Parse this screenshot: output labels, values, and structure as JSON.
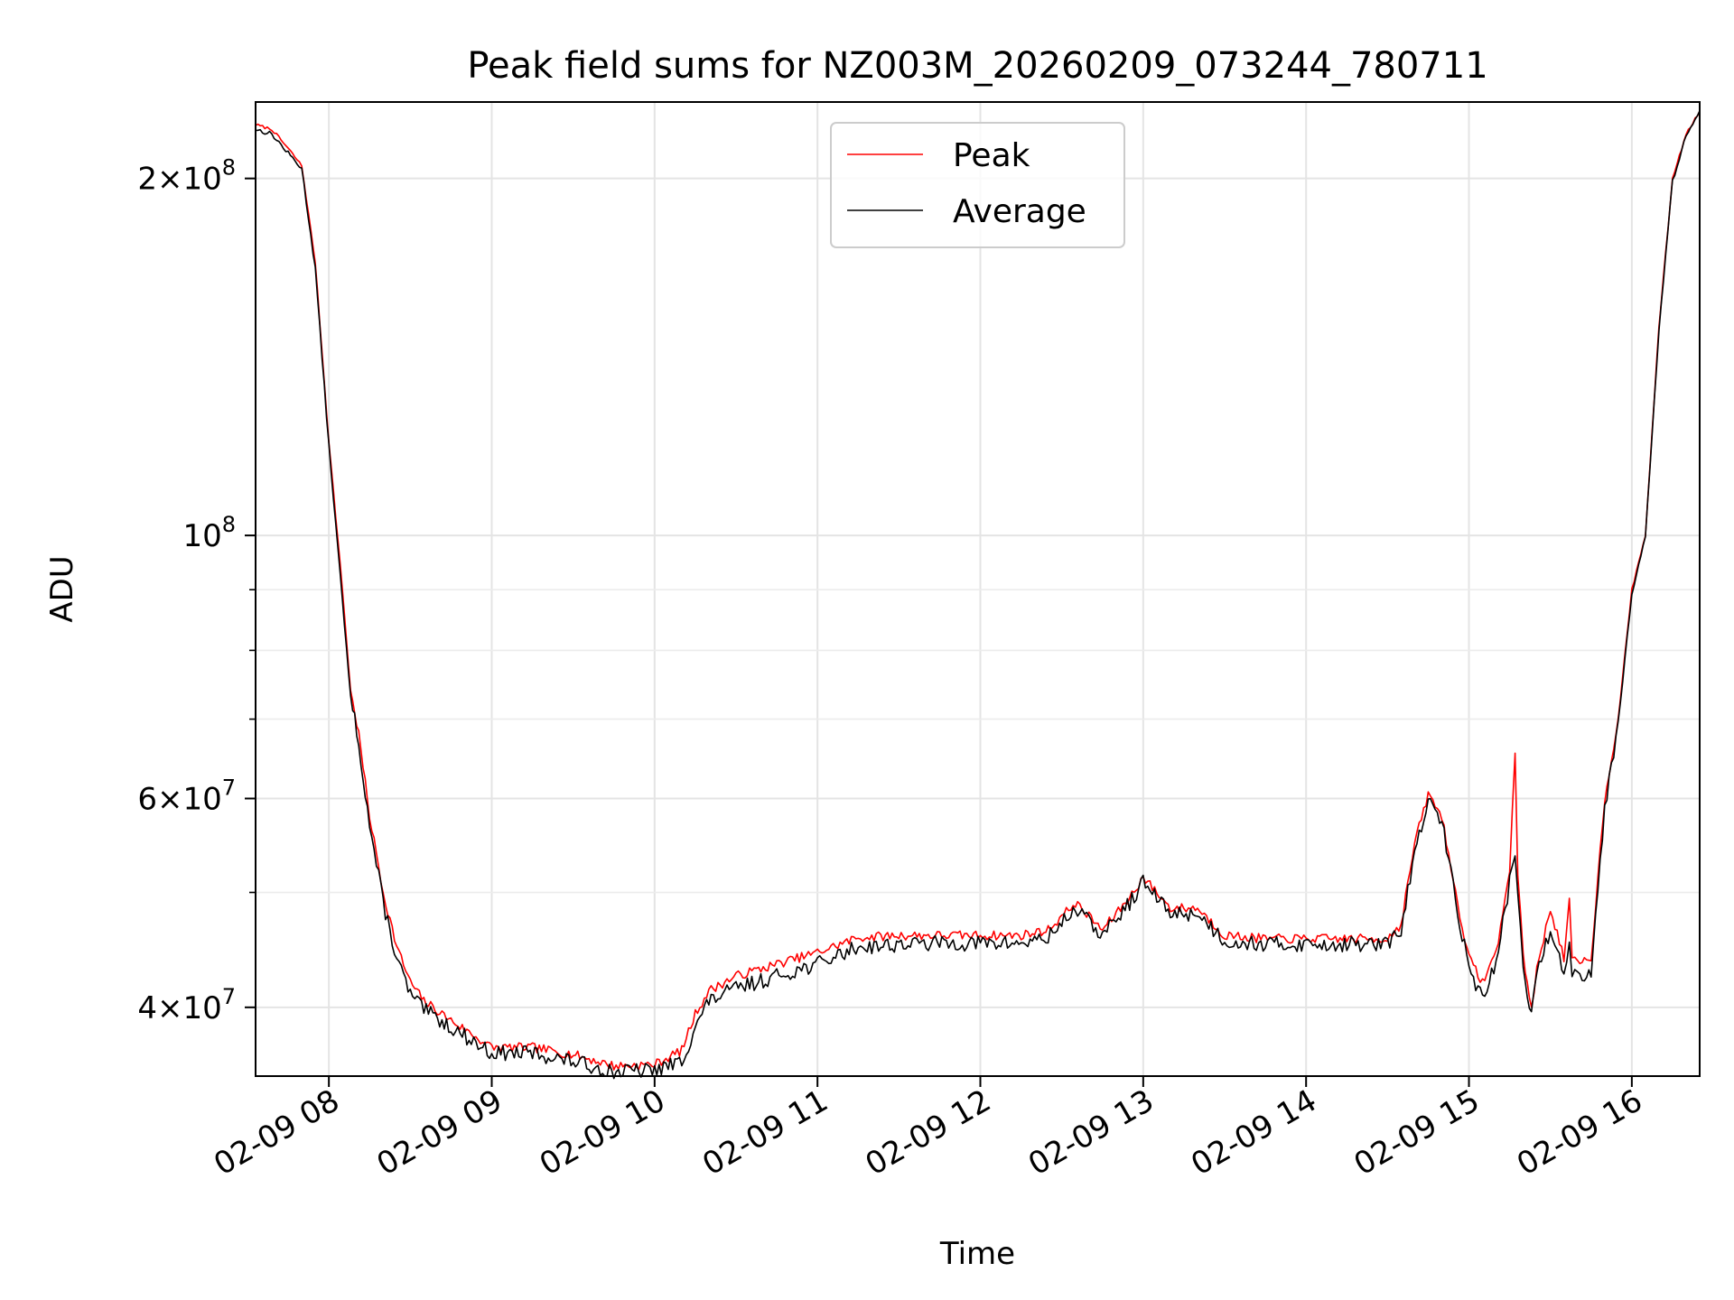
{
  "chart_data": {
    "type": "line",
    "title": "Peak field sums for NZ003M_20260209_073244_780711",
    "xlabel": "Time",
    "ylabel": "ADU",
    "y_scale": "log",
    "ylim": [
      35000000,
      232000000
    ],
    "xlim": [
      "02-09 07:33",
      "02-09 16:25"
    ],
    "grid": true,
    "legend_position": "upper-center",
    "x_tick_labels": [
      "02-09 08",
      "02-09 09",
      "02-09 10",
      "02-09 11",
      "02-09 12",
      "02-09 13",
      "02-09 14",
      "02-09 15",
      "02-09 16"
    ],
    "x_tick_values": [
      "02-09 08:00",
      "02-09 09:00",
      "02-09 10:00",
      "02-09 11:00",
      "02-09 12:00",
      "02-09 13:00",
      "02-09 14:00",
      "02-09 15:00",
      "02-09 16:00"
    ],
    "y_major_ticks": [
      {
        "value": 40000000,
        "mantissa": "4",
        "exponent": "7"
      },
      {
        "value": 60000000,
        "mantissa": "6",
        "exponent": "7"
      },
      {
        "value": 100000000,
        "mantissa": "",
        "exponent": "8"
      },
      {
        "value": 200000000,
        "mantissa": "2",
        "exponent": "8"
      }
    ],
    "y_minor_ticks": [
      50000000,
      70000000,
      80000000,
      90000000
    ],
    "series": [
      {
        "name": "Peak",
        "color": "#ff0000",
        "x": [
          "02-09 07:33",
          "02-09 07:39",
          "02-09 07:45",
          "02-09 07:50",
          "02-09 07:55",
          "02-09 08:00",
          "02-09 08:05",
          "02-09 08:08",
          "02-09 08:11",
          "02-09 08:15",
          "02-09 08:20",
          "02-09 08:25",
          "02-09 08:30",
          "02-09 08:35",
          "02-09 08:45",
          "02-09 09:00",
          "02-09 09:15",
          "02-09 09:30",
          "02-09 09:45",
          "02-09 10:00",
          "02-09 10:10",
          "02-09 10:15",
          "02-09 10:20",
          "02-09 10:30",
          "02-09 10:45",
          "02-09 11:00",
          "02-09 11:15",
          "02-09 11:30",
          "02-09 11:45",
          "02-09 12:00",
          "02-09 12:15",
          "02-09 12:25",
          "02-09 12:35",
          "02-09 12:45",
          "02-09 12:55",
          "02-09 13:00",
          "02-09 13:10",
          "02-09 13:20",
          "02-09 13:30",
          "02-09 13:45",
          "02-09 14:00",
          "02-09 14:15",
          "02-09 14:30",
          "02-09 14:35",
          "02-09 14:40",
          "02-09 14:45",
          "02-09 14:50",
          "02-09 14:55",
          "02-09 15:00",
          "02-09 15:05",
          "02-09 15:10",
          "02-09 15:15",
          "02-09 15:17",
          "02-09 15:18",
          "02-09 15:20",
          "02-09 15:23",
          "02-09 15:25",
          "02-09 15:30",
          "02-09 15:35",
          "02-09 15:37",
          "02-09 15:38",
          "02-09 15:40",
          "02-09 15:45",
          "02-09 15:50",
          "02-09 15:55",
          "02-09 16:00",
          "02-09 16:05",
          "02-09 16:10",
          "02-09 16:15",
          "02-09 16:20",
          "02-09 16:25"
        ],
        "y": [
          222000000,
          220000000,
          212000000,
          205000000,
          170000000,
          120000000,
          90000000,
          74000000,
          68000000,
          58000000,
          50000000,
          45000000,
          42000000,
          40500000,
          39000000,
          37000000,
          37000000,
          36500000,
          35700000,
          35800000,
          36800000,
          39500000,
          41300000,
          42500000,
          43500000,
          44500000,
          45800000,
          46000000,
          46000000,
          46000000,
          46000000,
          46500000,
          49000000,
          46500000,
          49500000,
          51500000,
          48500000,
          48500000,
          46000000,
          45700000,
          45700000,
          45700000,
          45700000,
          47000000,
          55000000,
          60500000,
          58000000,
          50000000,
          44000000,
          42000000,
          44500000,
          52000000,
          66000000,
          52000000,
          44000000,
          40000000,
          43000000,
          48500000,
          44000000,
          49000000,
          44000000,
          43500000,
          44000000,
          60000000,
          70000000,
          90000000,
          100000000,
          150000000,
          200000000,
          218000000,
          228000000
        ]
      },
      {
        "name": "Average",
        "color": "#000000",
        "x": [
          "02-09 07:33",
          "02-09 07:39",
          "02-09 07:45",
          "02-09 07:50",
          "02-09 07:55",
          "02-09 08:00",
          "02-09 08:05",
          "02-09 08:08",
          "02-09 08:11",
          "02-09 08:15",
          "02-09 08:20",
          "02-09 08:25",
          "02-09 08:30",
          "02-09 08:35",
          "02-09 08:45",
          "02-09 09:00",
          "02-09 09:15",
          "02-09 09:30",
          "02-09 09:45",
          "02-09 10:00",
          "02-09 10:10",
          "02-09 10:15",
          "02-09 10:20",
          "02-09 10:30",
          "02-09 10:45",
          "02-09 11:00",
          "02-09 11:15",
          "02-09 11:30",
          "02-09 11:45",
          "02-09 12:00",
          "02-09 12:15",
          "02-09 12:25",
          "02-09 12:35",
          "02-09 12:45",
          "02-09 12:55",
          "02-09 13:00",
          "02-09 13:10",
          "02-09 13:20",
          "02-09 13:30",
          "02-09 13:45",
          "02-09 14:00",
          "02-09 14:15",
          "02-09 14:30",
          "02-09 14:35",
          "02-09 14:40",
          "02-09 14:45",
          "02-09 14:50",
          "02-09 14:55",
          "02-09 15:00",
          "02-09 15:05",
          "02-09 15:10",
          "02-09 15:15",
          "02-09 15:17",
          "02-09 15:18",
          "02-09 15:20",
          "02-09 15:23",
          "02-09 15:25",
          "02-09 15:30",
          "02-09 15:35",
          "02-09 15:37",
          "02-09 15:38",
          "02-09 15:40",
          "02-09 15:45",
          "02-09 15:50",
          "02-09 15:55",
          "02-09 16:00",
          "02-09 16:05",
          "02-09 16:10",
          "02-09 16:15",
          "02-09 16:20",
          "02-09 16:25"
        ],
        "y": [
          220000000,
          218000000,
          210000000,
          204000000,
          168000000,
          119000000,
          88000000,
          73000000,
          67000000,
          57000000,
          49000000,
          44000000,
          41000000,
          39800000,
          38500000,
          36600000,
          36600000,
          36000000,
          35300000,
          35400000,
          36000000,
          38500000,
          40500000,
          41500000,
          42500000,
          43500000,
          45000000,
          45200000,
          45300000,
          45300000,
          45300000,
          45800000,
          48500000,
          46000000,
          49000000,
          51000000,
          48000000,
          48000000,
          45500000,
          45200000,
          45200000,
          45200000,
          45200000,
          46500000,
          54000000,
          59500000,
          57500000,
          49500000,
          43000000,
          40800000,
          43500000,
          51000000,
          54000000,
          50000000,
          43000000,
          39500000,
          42500000,
          46500000,
          43000000,
          45000000,
          43000000,
          42500000,
          43000000,
          59000000,
          69500000,
          89500000,
          99500000,
          149000000,
          199000000,
          217000000,
          228000000
        ]
      }
    ]
  }
}
